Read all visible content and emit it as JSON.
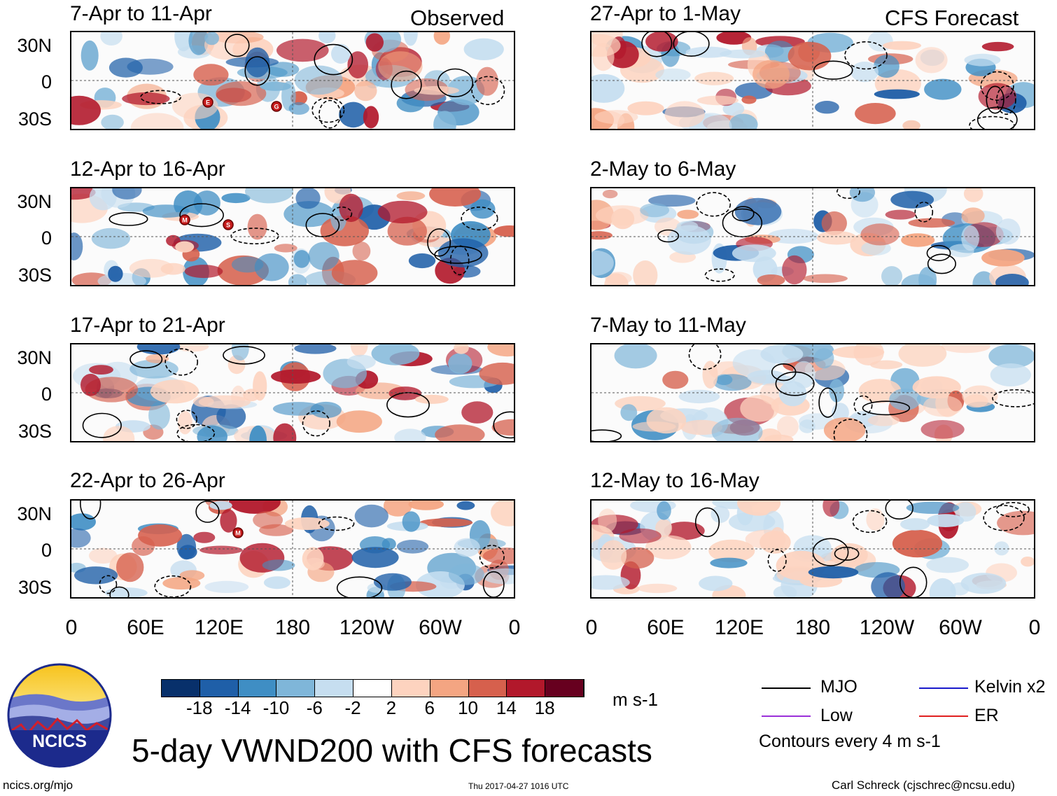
{
  "header": {
    "left": "Observed",
    "right": "CFS Forecast"
  },
  "panels": {
    "left": [
      {
        "title": "7-Apr to 11-Apr"
      },
      {
        "title": "12-Apr to 16-Apr"
      },
      {
        "title": "17-Apr to 21-Apr"
      },
      {
        "title": "22-Apr to 26-Apr"
      }
    ],
    "right": [
      {
        "title": "27-Apr to 1-May"
      },
      {
        "title": "2-May to 6-May"
      },
      {
        "title": "7-May to 11-May"
      },
      {
        "title": "12-May to 16-May"
      }
    ]
  },
  "lat_labels": [
    "30N",
    "0",
    "30S"
  ],
  "lon_labels": [
    "0",
    "60E",
    "120E",
    "180",
    "120W",
    "60W",
    "0"
  ],
  "storm_markers": {
    "panel1": [
      "E",
      "G"
    ],
    "panel2": [
      "M",
      "S"
    ],
    "panel4": [
      "M"
    ]
  },
  "colorbar": {
    "ticks": [
      "-18",
      "-14",
      "-10",
      "-6",
      "-2",
      "2",
      "6",
      "10",
      "14",
      "18"
    ],
    "units": "m s-1",
    "colors": [
      "#08306b",
      "#1f5fa8",
      "#3f8ec4",
      "#7fb6d9",
      "#c6def0",
      "#ffffff",
      "#fdd3bf",
      "#f4a582",
      "#d6604d",
      "#b2182b",
      "#67001f"
    ]
  },
  "legend": {
    "mjo": "MJO",
    "kelvin": "Kelvin x2",
    "low": "Low",
    "er": "ER",
    "contours": "Contours every 4 m s-1",
    "colors": {
      "mjo": "#000000",
      "kelvin": "#1a1acc",
      "low": "#9b30d9",
      "er": "#e02020"
    }
  },
  "title": "5-day VWND200 with CFS forecasts",
  "logo_text": "NCICS",
  "footer": {
    "url": "ncics.org/mjo",
    "timestamp": "Thu 2017-04-27 1016 UTC",
    "author": "Carl Schreck (cjschrec@ncsu.edu)"
  }
}
